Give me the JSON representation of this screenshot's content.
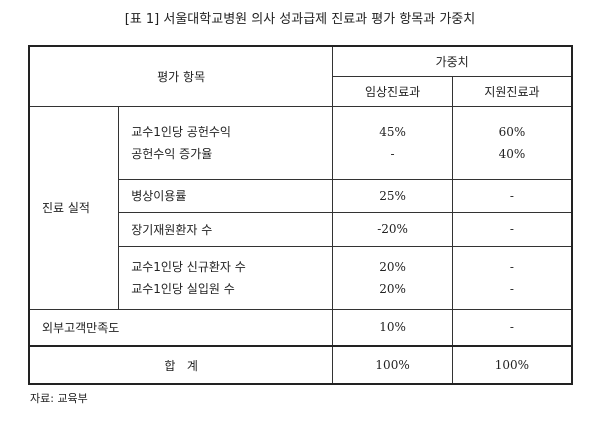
{
  "title": "[표 1] 서울대학교병원 의사 성과급제 진료과 평가 항목과 가중치",
  "header": {
    "item": "평가 항목",
    "weight": "가중치",
    "clinical": "임상진료과",
    "support": "지원진료과"
  },
  "group": "진료 실적",
  "rows": [
    {
      "items": [
        "교수1인당 공헌수익",
        "공헌수익 증가율"
      ],
      "clinical": [
        "45%",
        "-"
      ],
      "support": [
        "60%",
        "40%"
      ]
    },
    {
      "items": [
        "병상이용률"
      ],
      "clinical": [
        "25%"
      ],
      "support": [
        "-"
      ]
    },
    {
      "items": [
        "장기재원환자 수"
      ],
      "clinical": [
        "-20%"
      ],
      "support": [
        "-"
      ]
    },
    {
      "items": [
        "교수1인당 신규환자 수",
        "교수1인당 실입원 수"
      ],
      "clinical": [
        "20%",
        "20%"
      ],
      "support": [
        "-",
        "-"
      ]
    }
  ],
  "external": {
    "label": "외부고객만족도",
    "clinical": "10%",
    "support": "-"
  },
  "total": {
    "label": "합   계",
    "clinical": "100%",
    "support": "100%"
  },
  "source": "자료: 교육부"
}
